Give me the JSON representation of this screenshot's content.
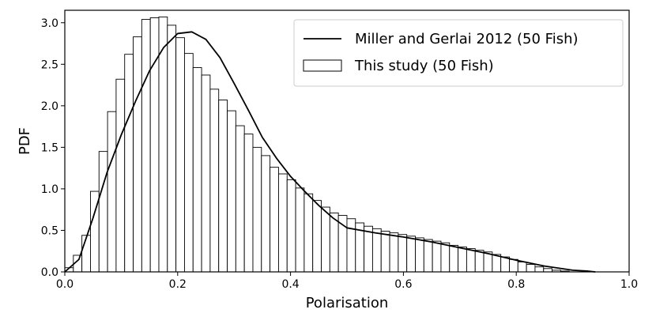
{
  "chart_data": {
    "type": "bar",
    "title": "",
    "xlabel": "Polarisation",
    "ylabel": "PDF",
    "xlim": [
      0.0,
      1.0
    ],
    "ylim": [
      0.0,
      3.15
    ],
    "grid": false,
    "legend_position": "top-right",
    "xticks": [
      "0.0",
      "0.2",
      "0.4",
      "0.6",
      "0.8",
      "1.0"
    ],
    "yticks": [
      "0.0",
      "0.5",
      "1.0",
      "1.5",
      "2.0",
      "2.5",
      "3.0"
    ],
    "histogram": {
      "name": "This study (50 Fish)",
      "bin_width": 0.01515,
      "bin_start": 0.0,
      "values": [
        0.05,
        0.2,
        0.44,
        0.97,
        1.45,
        1.93,
        2.32,
        2.62,
        2.83,
        3.04,
        3.06,
        3.07,
        2.97,
        2.82,
        2.63,
        2.46,
        2.37,
        2.2,
        2.07,
        1.94,
        1.76,
        1.66,
        1.5,
        1.4,
        1.26,
        1.18,
        1.11,
        1.01,
        0.94,
        0.86,
        0.78,
        0.71,
        0.68,
        0.64,
        0.59,
        0.55,
        0.52,
        0.49,
        0.47,
        0.45,
        0.43,
        0.41,
        0.39,
        0.37,
        0.35,
        0.32,
        0.3,
        0.28,
        0.26,
        0.24,
        0.21,
        0.18,
        0.15,
        0.12,
        0.09,
        0.06,
        0.04,
        0.02,
        0.01,
        0.0,
        0.0,
        0.0
      ]
    },
    "line": {
      "name": "Miller and Gerlai 2012 (50 Fish)",
      "x": [
        0.0,
        0.025,
        0.05,
        0.075,
        0.1,
        0.125,
        0.15,
        0.175,
        0.2,
        0.225,
        0.25,
        0.275,
        0.3,
        0.325,
        0.35,
        0.375,
        0.4,
        0.425,
        0.45,
        0.475,
        0.5,
        0.55,
        0.6,
        0.65,
        0.7,
        0.75,
        0.8,
        0.85,
        0.9,
        0.925,
        0.94
      ],
      "y": [
        0.0,
        0.15,
        0.65,
        1.2,
        1.65,
        2.05,
        2.42,
        2.7,
        2.87,
        2.89,
        2.8,
        2.58,
        2.27,
        1.95,
        1.62,
        1.37,
        1.15,
        0.97,
        0.8,
        0.65,
        0.53,
        0.47,
        0.42,
        0.36,
        0.29,
        0.22,
        0.14,
        0.07,
        0.02,
        0.01,
        0.0
      ]
    }
  }
}
